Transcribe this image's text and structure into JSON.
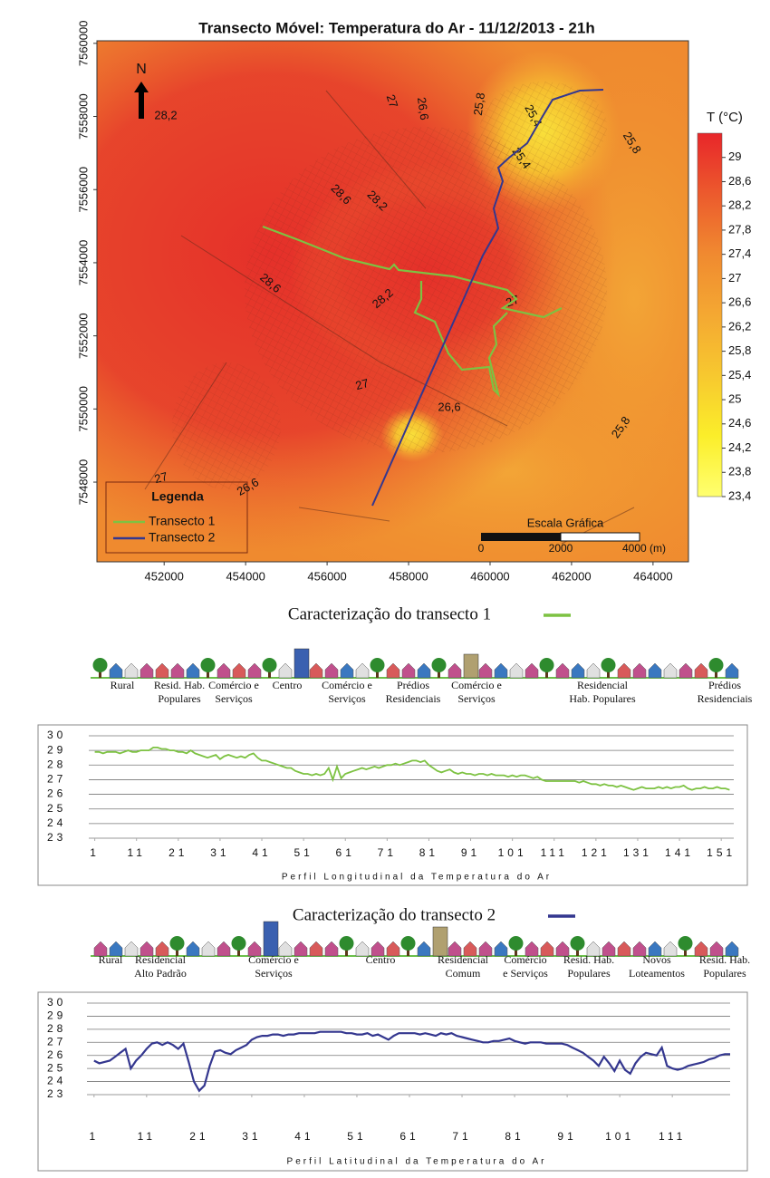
{
  "map": {
    "title": "Transecto Móvel: Temperatura do Ar - 11/12/2013 - 21h",
    "xlim": [
      450350,
      464870
    ],
    "ylim": [
      7545820,
      7560070
    ],
    "xticks": [
      452000,
      454000,
      456000,
      458000,
      460000,
      462000,
      464000
    ],
    "yticks": [
      7548000,
      7550000,
      7552000,
      7554000,
      7556000,
      7558000,
      7560000
    ],
    "north": "N",
    "legend_title": "Legenda",
    "contour_labels": [
      "28,2",
      "27",
      "26,6",
      "25,8",
      "25,4",
      "25,4",
      "25,8",
      "28,6",
      "28,2",
      "28,6",
      "28,2",
      "27",
      "27",
      "26,6",
      "25,8",
      "27",
      "26,6"
    ],
    "scale_title": "Escala Gráfica",
    "scale_labels": [
      "0",
      "2000",
      "4000 (m)"
    ],
    "colorbar": {
      "title": "T (°C)",
      "lim": [
        23.4,
        29.4
      ],
      "colors": [
        "#e8262a",
        "#ec5a2d",
        "#f08a30",
        "#f4a832",
        "#f7c82f",
        "#fbee2a",
        "#ffff70"
      ],
      "ticks": [
        {
          "value": 29,
          "label": "29"
        },
        {
          "value": 28.6,
          "label": "28,6"
        },
        {
          "value": 28.2,
          "label": "28,2"
        },
        {
          "value": 27.8,
          "label": "27,8"
        },
        {
          "value": 27.4,
          "label": "27,4"
        },
        {
          "value": 27,
          "label": "27"
        },
        {
          "value": 26.6,
          "label": "26,6"
        },
        {
          "value": 26.2,
          "label": "26,2"
        },
        {
          "value": 25.8,
          "label": "25,8"
        },
        {
          "value": 25.4,
          "label": "25,4"
        },
        {
          "value": 25,
          "label": "25"
        },
        {
          "value": 24.6,
          "label": "24,6"
        },
        {
          "value": 24.2,
          "label": "24,2"
        },
        {
          "value": 23.8,
          "label": "23,8"
        },
        {
          "value": 23.4,
          "label": "23,4"
        }
      ]
    }
  },
  "chart_data": [
    {
      "type": "line",
      "title": "Caracterização do transecto 1",
      "zones": [
        [
          "Rural"
        ],
        [
          "Resid. Hab.",
          "Populares"
        ],
        [
          "Comércio e",
          "Serviços"
        ],
        [
          "Centro"
        ],
        [
          "Comércio e",
          "Serviços"
        ],
        [
          "Prédios",
          "Residenciais"
        ],
        [
          "Comércio e",
          "Serviços"
        ],
        [
          "Residencial",
          "Hab. Populares"
        ],
        [
          "Prédios",
          "Residenciais"
        ]
      ],
      "xlabel": "Perfil Longitudinal da Temperatura do Ar",
      "xlim": [
        0,
        154
      ],
      "ylim": [
        23,
        30
      ],
      "xticks": [
        1,
        11,
        21,
        31,
        41,
        51,
        61,
        71,
        81,
        91,
        101,
        111,
        121,
        131,
        141,
        151
      ],
      "yticks": [
        23,
        24,
        25,
        26,
        27,
        28,
        29,
        30
      ],
      "x": [
        1,
        2,
        3,
        4,
        5,
        6,
        7,
        8,
        9,
        10,
        11,
        12,
        13,
        14,
        15,
        16,
        17,
        18,
        19,
        20,
        21,
        22,
        23,
        24,
        25,
        26,
        27,
        28,
        29,
        30,
        31,
        32,
        33,
        34,
        35,
        36,
        37,
        38,
        39,
        40,
        41,
        42,
        43,
        44,
        45,
        46,
        47,
        48,
        49,
        50,
        51,
        52,
        53,
        54,
        55,
        56,
        57,
        58,
        59,
        60,
        61,
        62,
        63,
        64,
        65,
        66,
        67,
        68,
        69,
        70,
        71,
        72,
        73,
        74,
        75,
        76,
        77,
        78,
        79,
        80,
        81,
        82,
        83,
        84,
        85,
        86,
        87,
        88,
        89,
        90,
        91,
        92,
        93,
        94,
        95,
        96,
        97,
        98,
        99,
        100,
        101,
        102,
        103,
        104,
        105,
        106,
        107,
        108,
        109,
        110,
        111,
        112,
        113,
        114,
        115,
        116,
        117,
        118,
        119,
        120,
        121,
        122,
        123,
        124,
        125,
        126,
        127,
        128,
        129,
        130,
        131,
        132,
        133,
        134,
        135,
        136,
        137,
        138,
        139,
        140,
        141,
        142,
        143,
        144,
        145,
        146,
        147,
        148,
        149,
        150,
        151,
        152,
        153
      ],
      "series": [
        {
          "name": "Transecto 1",
          "color": "#7dc242",
          "values": [
            28.9,
            28.9,
            28.8,
            28.9,
            28.9,
            28.9,
            28.8,
            28.9,
            29.0,
            28.9,
            28.9,
            29.0,
            29.0,
            29.0,
            29.2,
            29.2,
            29.1,
            29.1,
            29.0,
            29.0,
            28.9,
            28.9,
            28.8,
            29.0,
            28.8,
            28.7,
            28.6,
            28.5,
            28.6,
            28.7,
            28.4,
            28.6,
            28.7,
            28.6,
            28.5,
            28.6,
            28.5,
            28.7,
            28.8,
            28.5,
            28.3,
            28.3,
            28.2,
            28.1,
            28.0,
            27.9,
            27.8,
            27.8,
            27.6,
            27.5,
            27.4,
            27.4,
            27.3,
            27.4,
            27.3,
            27.4,
            27.8,
            27.0,
            27.9,
            27.1,
            27.4,
            27.5,
            27.6,
            27.7,
            27.8,
            27.7,
            27.8,
            27.9,
            27.8,
            27.9,
            28.0,
            28.0,
            28.1,
            28.0,
            28.1,
            28.2,
            28.3,
            28.3,
            28.2,
            28.3,
            28.0,
            27.8,
            27.6,
            27.5,
            27.6,
            27.7,
            27.5,
            27.4,
            27.5,
            27.4,
            27.4,
            27.3,
            27.4,
            27.4,
            27.3,
            27.4,
            27.3,
            27.3,
            27.3,
            27.2,
            27.3,
            27.2,
            27.3,
            27.3,
            27.2,
            27.1,
            27.2,
            27.0,
            26.9,
            26.9,
            26.9,
            26.9,
            26.9,
            26.9,
            26.9,
            26.9,
            26.8,
            26.9,
            26.8,
            26.7,
            26.7,
            26.6,
            26.7,
            26.6,
            26.6,
            26.5,
            26.6,
            26.5,
            26.4,
            26.3,
            26.4,
            26.5,
            26.4,
            26.4,
            26.4,
            26.5,
            26.4,
            26.5,
            26.4,
            26.5,
            26.5,
            26.6,
            26.4,
            26.3,
            26.4,
            26.4,
            26.5,
            26.4,
            26.4,
            26.5,
            26.4,
            26.4,
            26.3
          ]
        }
      ]
    },
    {
      "type": "line",
      "title": "Caracterização do transecto 2",
      "zones": [
        [
          "Rural"
        ],
        [
          "Residencial",
          "Alto Padrão"
        ],
        [
          "Comércio e",
          "Serviços"
        ],
        [
          "Centro"
        ],
        [
          "Residencial",
          "Comum"
        ],
        [
          "Comércio",
          "e Serviços"
        ],
        [
          "Resid. Hab.",
          "Populares"
        ],
        [
          "Novos",
          "Loteamentos"
        ],
        [
          "Resid. Hab.",
          "Populares"
        ]
      ],
      "xlabel": "Perfil Latitudinal da Temperatura do Ar",
      "xlim": [
        0,
        122
      ],
      "ylim": [
        23,
        30
      ],
      "xticks": [
        1,
        11,
        21,
        31,
        41,
        51,
        61,
        71,
        81,
        91,
        101,
        111
      ],
      "yticks": [
        23,
        24,
        25,
        26,
        27,
        28,
        29,
        30
      ],
      "x": [
        1,
        2,
        3,
        4,
        5,
        6,
        7,
        8,
        9,
        10,
        11,
        12,
        13,
        14,
        15,
        16,
        17,
        18,
        19,
        20,
        21,
        22,
        23,
        24,
        25,
        26,
        27,
        28,
        29,
        30,
        31,
        32,
        33,
        34,
        35,
        36,
        37,
        38,
        39,
        40,
        41,
        42,
        43,
        44,
        45,
        46,
        47,
        48,
        49,
        50,
        51,
        52,
        53,
        54,
        55,
        56,
        57,
        58,
        59,
        60,
        61,
        62,
        63,
        64,
        65,
        66,
        67,
        68,
        69,
        70,
        71,
        72,
        73,
        74,
        75,
        76,
        77,
        78,
        79,
        80,
        81,
        82,
        83,
        84,
        85,
        86,
        87,
        88,
        89,
        90,
        91,
        92,
        93,
        94,
        95,
        96,
        97,
        98,
        99,
        100,
        101,
        102,
        103,
        104,
        105,
        106,
        107,
        108,
        109,
        110,
        111,
        112,
        113,
        114,
        115,
        116,
        117,
        118,
        119,
        120,
        121,
        122
      ],
      "series": [
        {
          "name": "Transecto 2",
          "color": "#34378f",
          "values": [
            25.6,
            25.4,
            25.5,
            25.6,
            25.9,
            26.2,
            26.5,
            25.0,
            25.6,
            26.0,
            26.5,
            26.9,
            27.0,
            26.8,
            27.0,
            26.8,
            26.5,
            26.9,
            25.5,
            24.0,
            23.3,
            23.7,
            25.2,
            26.3,
            26.4,
            26.2,
            26.1,
            26.4,
            26.6,
            26.8,
            27.2,
            27.4,
            27.5,
            27.5,
            27.6,
            27.6,
            27.5,
            27.6,
            27.6,
            27.7,
            27.7,
            27.7,
            27.7,
            27.8,
            27.8,
            27.8,
            27.8,
            27.8,
            27.7,
            27.7,
            27.6,
            27.6,
            27.7,
            27.5,
            27.6,
            27.4,
            27.2,
            27.5,
            27.7,
            27.7,
            27.7,
            27.7,
            27.6,
            27.7,
            27.6,
            27.5,
            27.7,
            27.6,
            27.7,
            27.5,
            27.4,
            27.3,
            27.2,
            27.1,
            27.0,
            27.0,
            27.1,
            27.1,
            27.2,
            27.3,
            27.1,
            27.0,
            26.9,
            27.0,
            27.0,
            27.0,
            26.9,
            26.9,
            26.9,
            26.9,
            26.8,
            26.6,
            26.4,
            26.2,
            25.9,
            25.6,
            25.2,
            25.9,
            25.4,
            24.8,
            25.6,
            24.9,
            24.6,
            25.4,
            25.9,
            26.2,
            26.1,
            26.0,
            26.6,
            25.2,
            25.0,
            24.9,
            25.0,
            25.2,
            25.3,
            25.4,
            25.5,
            25.7,
            25.8,
            26.0,
            26.1,
            26.1
          ]
        }
      ]
    }
  ]
}
